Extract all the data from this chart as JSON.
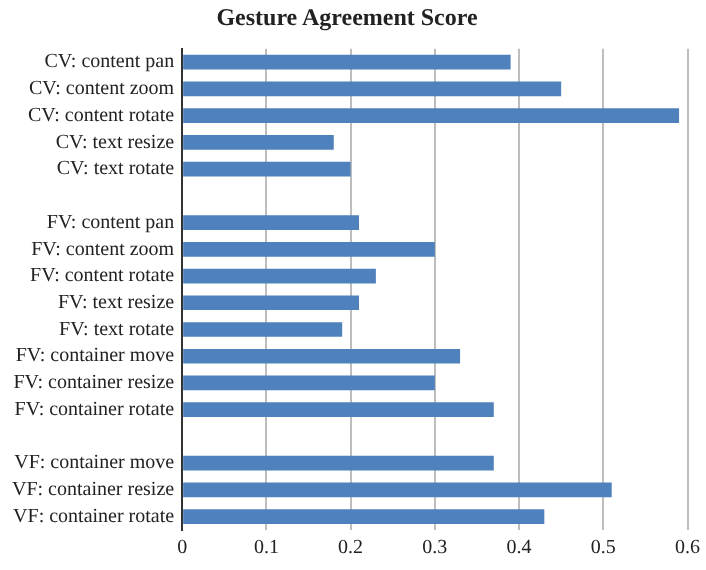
{
  "chart_data": {
    "type": "bar",
    "orientation": "horizontal",
    "title": "Gesture Agreement Score",
    "categories": [
      "CV: content pan",
      "CV: content zoom",
      "CV: content rotate",
      "CV: text resize",
      "CV: text rotate",
      null,
      "FV: content pan",
      "FV: content zoom",
      "FV: content rotate",
      "FV: text resize",
      "FV: text rotate",
      "FV: container move",
      "FV: container resize",
      "FV: container rotate",
      null,
      "VF: container move",
      "VF: container resize",
      "VF: container rotate"
    ],
    "values": [
      0.39,
      0.45,
      0.59,
      0.18,
      0.2,
      null,
      0.21,
      0.3,
      0.23,
      0.21,
      0.19,
      0.33,
      0.3,
      0.37,
      null,
      0.37,
      0.51,
      0.43
    ],
    "color": "#4f81bd",
    "xlim": [
      0,
      0.6
    ],
    "xticks": [
      0,
      0.1,
      0.2,
      0.3,
      0.4,
      0.5,
      0.6
    ],
    "grid": "x",
    "legend": false
  }
}
